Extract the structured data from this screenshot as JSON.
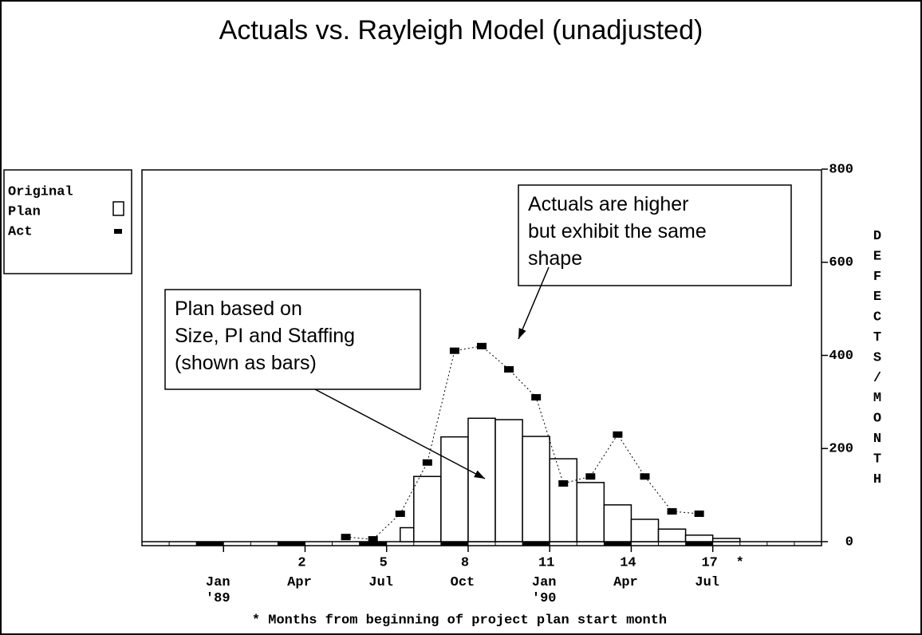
{
  "chart_data": {
    "type": "bar",
    "title": "Actuals vs. Rayleigh Model (unadjusted)",
    "ylabel": "DEFECTS/MONTH",
    "xlabel": "* Months from beginning of project plan start month",
    "x_marker": "*",
    "legend_title": "Original",
    "xlim": [
      -4,
      21
    ],
    "ylim": [
      0,
      800
    ],
    "yticks": [
      0,
      200,
      400,
      600,
      800
    ],
    "xticks": [
      2,
      5,
      8,
      11,
      14,
      17
    ],
    "date_ticks": [
      {
        "value": -1,
        "label": "Jan\n'89"
      },
      {
        "value": 2,
        "label": "Apr"
      },
      {
        "value": 5,
        "label": "Jul"
      },
      {
        "value": 8,
        "label": "Oct"
      },
      {
        "value": 11,
        "label": "Jan\n'90"
      },
      {
        "value": 14,
        "label": "Apr"
      },
      {
        "value": 17,
        "label": "Jul"
      }
    ],
    "plan": {
      "name": "Plan",
      "color": "#ffffff",
      "bins": [
        5.5,
        6,
        7,
        8,
        9,
        10,
        11,
        12,
        13,
        14,
        15,
        16,
        17,
        18
      ],
      "values": [
        30,
        140,
        225,
        265,
        262,
        226,
        178,
        127,
        79,
        48,
        27,
        14,
        7
      ]
    },
    "actual": {
      "name": "Act",
      "color": "#000000",
      "x": [
        3.5,
        4.5,
        5.5,
        6.5,
        7.5,
        8.5,
        9.5,
        10.5,
        11.5,
        12.5,
        13.5,
        14.5,
        15.5,
        16.5
      ],
      "values": [
        10,
        5,
        60,
        170,
        410,
        420,
        370,
        310,
        125,
        140,
        230,
        140,
        65,
        60
      ]
    },
    "annotations": [
      {
        "text": "Actuals are higher\nbut exhibit the same\nshape"
      },
      {
        "text": "Plan based on\nSize, PI and Staffing\n(shown as bars)"
      }
    ]
  }
}
